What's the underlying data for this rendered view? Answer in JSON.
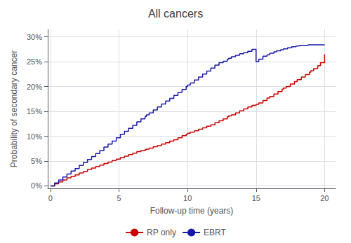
{
  "chart_data": {
    "type": "step",
    "title": "All cancers",
    "xlabel": "Follow-up time (years)",
    "ylabel": "Probability of secondary cancer",
    "xlim": [
      -0.2,
      20.8
    ],
    "ylim": [
      -0.005,
      0.315
    ],
    "xticks": [
      0,
      5,
      10,
      15,
      20
    ],
    "yticks": [
      {
        "value": 0.0,
        "label": "0%"
      },
      {
        "value": 0.05,
        "label": "5%"
      },
      {
        "value": 0.1,
        "label": "10%"
      },
      {
        "value": 0.15,
        "label": "15%"
      },
      {
        "value": 0.2,
        "label": "20%"
      },
      {
        "value": 0.25,
        "label": "25%"
      },
      {
        "value": 0.3,
        "label": "30%"
      }
    ],
    "grid": true,
    "legend": "bottom",
    "series": [
      {
        "name": "RP only",
        "color": "#cc0000",
        "x": [
          0,
          0.3,
          0.6,
          0.9,
          1.2,
          1.5,
          1.8,
          2.1,
          2.4,
          2.7,
          3.0,
          3.3,
          3.6,
          3.9,
          4.2,
          4.5,
          4.8,
          5.1,
          5.4,
          5.7,
          6.0,
          6.3,
          6.6,
          6.9,
          7.0,
          7.2,
          7.5,
          7.8,
          8.1,
          8.4,
          8.7,
          9.0,
          9.3,
          9.6,
          9.9,
          10.0,
          10.2,
          10.5,
          10.8,
          11.1,
          11.4,
          11.7,
          12.0,
          12.3,
          12.6,
          12.9,
          13.0,
          13.2,
          13.5,
          13.8,
          14.1,
          14.4,
          14.7,
          15.0,
          15.2,
          15.5,
          15.8,
          16.0,
          16.3,
          16.6,
          16.9,
          17.0,
          17.2,
          17.5,
          17.8,
          18.0,
          18.3,
          18.6,
          18.9,
          19.0,
          19.2,
          19.5,
          19.7,
          20.0
        ],
        "values": [
          0.0,
          0.004,
          0.008,
          0.012,
          0.016,
          0.019,
          0.022,
          0.026,
          0.029,
          0.033,
          0.036,
          0.039,
          0.042,
          0.045,
          0.048,
          0.051,
          0.054,
          0.057,
          0.06,
          0.063,
          0.066,
          0.069,
          0.071,
          0.073,
          0.074,
          0.076,
          0.079,
          0.081,
          0.084,
          0.087,
          0.09,
          0.093,
          0.097,
          0.101,
          0.104,
          0.106,
          0.108,
          0.111,
          0.114,
          0.117,
          0.12,
          0.123,
          0.127,
          0.131,
          0.135,
          0.139,
          0.141,
          0.143,
          0.147,
          0.151,
          0.155,
          0.159,
          0.162,
          0.164,
          0.167,
          0.172,
          0.177,
          0.18,
          0.185,
          0.19,
          0.195,
          0.197,
          0.2,
          0.205,
          0.21,
          0.214,
          0.219,
          0.224,
          0.229,
          0.232,
          0.236,
          0.242,
          0.248,
          0.265
        ]
      },
      {
        "name": "EBRT",
        "color": "#1a1aaa",
        "x": [
          0,
          0.3,
          0.6,
          0.9,
          1.2,
          1.5,
          1.8,
          2.1,
          2.4,
          2.7,
          3.0,
          3.3,
          3.6,
          3.9,
          4.2,
          4.5,
          4.8,
          5.1,
          5.4,
          5.7,
          6.0,
          6.3,
          6.6,
          6.9,
          7.0,
          7.2,
          7.5,
          7.8,
          8.1,
          8.4,
          8.7,
          9.0,
          9.3,
          9.6,
          9.9,
          10.0,
          10.2,
          10.5,
          10.8,
          11.1,
          11.4,
          11.7,
          12.0,
          12.3,
          12.6,
          12.9,
          13.0,
          13.2,
          13.5,
          13.8,
          14.1,
          14.4,
          14.7,
          15.0,
          15.2,
          15.5,
          15.8,
          16.0,
          16.3,
          16.5,
          16.8,
          17.0,
          17.3,
          17.6,
          17.9,
          18.0,
          18.2,
          18.5,
          18.8,
          19.0,
          19.3,
          19.6,
          19.8,
          20.0
        ],
        "values": [
          0.0,
          0.006,
          0.012,
          0.018,
          0.024,
          0.03,
          0.035,
          0.041,
          0.047,
          0.053,
          0.059,
          0.065,
          0.071,
          0.078,
          0.084,
          0.09,
          0.097,
          0.104,
          0.11,
          0.116,
          0.122,
          0.129,
          0.135,
          0.14,
          0.143,
          0.147,
          0.153,
          0.159,
          0.165,
          0.171,
          0.176,
          0.182,
          0.188,
          0.194,
          0.2,
          0.203,
          0.207,
          0.213,
          0.219,
          0.225,
          0.231,
          0.237,
          0.243,
          0.248,
          0.251,
          0.255,
          0.257,
          0.26,
          0.263,
          0.266,
          0.268,
          0.271,
          0.275,
          0.25,
          0.255,
          0.261,
          0.264,
          0.267,
          0.27,
          0.272,
          0.274,
          0.276,
          0.278,
          0.28,
          0.281,
          0.282,
          0.283,
          0.283,
          0.284,
          0.284,
          0.284,
          0.284,
          0.284,
          0.284
        ]
      }
    ]
  }
}
